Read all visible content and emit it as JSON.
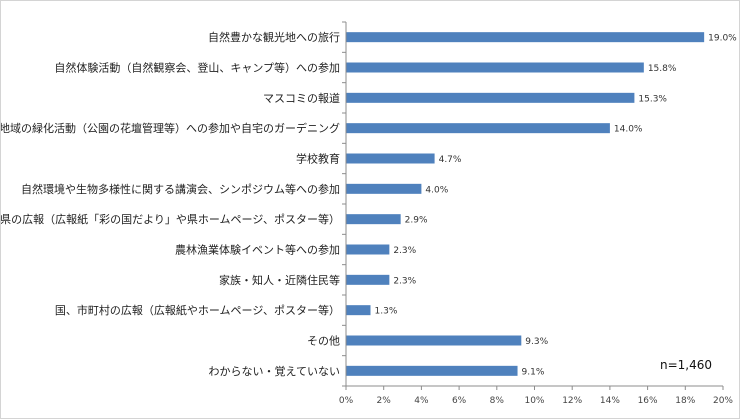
{
  "chart_data": {
    "type": "bar",
    "orientation": "horizontal",
    "categories": [
      "自然豊かな観光地への旅行",
      "自然体験活動（自然観察会、登山、キャンプ等）への参加",
      "マスコミの報道",
      "地域の緑化活動（公園の花壇管理等）への参加や自宅のガーデニング",
      "学校教育",
      "自然環境や生物多様性に関する講演会、シンポジウム等への参加",
      "県の広報（広報紙「彩の国だより」や県ホームページ、ポスター等）",
      "農林漁業体験イベント等への参加",
      "家族・知人・近隣住民等",
      "国、市町村の広報（広報紙やホームページ、ポスター等）",
      "その他",
      "わからない・覚えていない"
    ],
    "values": [
      19.0,
      15.8,
      15.3,
      14.0,
      4.7,
      4.0,
      2.9,
      2.3,
      2.3,
      1.3,
      9.3,
      9.1
    ],
    "value_labels": [
      "19.0%",
      "15.8%",
      "15.3%",
      "14.0%",
      "4.7%",
      "4.0%",
      "2.9%",
      "2.3%",
      "2.3%",
      "1.3%",
      "9.3%",
      "9.1%"
    ],
    "xlim": [
      0,
      20
    ],
    "x_ticks": [
      0,
      2,
      4,
      6,
      8,
      10,
      12,
      14,
      16,
      18,
      20
    ],
    "x_tick_labels": [
      "0%",
      "2%",
      "4%",
      "6%",
      "8%",
      "10%",
      "12%",
      "14%",
      "16%",
      "18%",
      "20%"
    ],
    "grid": false,
    "bar_color": "#4f81bd",
    "annotation": "n=1,460"
  }
}
